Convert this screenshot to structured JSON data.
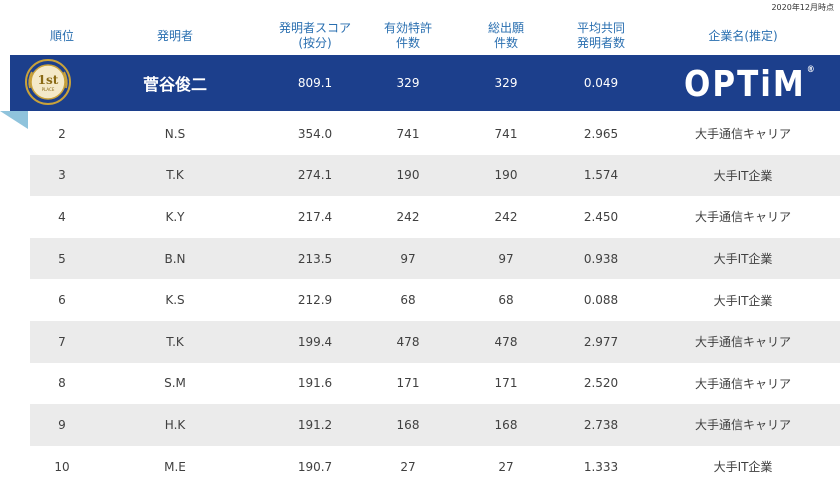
{
  "date_note": "2020年12月時点",
  "headers": {
    "rank": "順位",
    "inventor": "発明者",
    "score_line1": "発明者スコア",
    "score_line2": "(按分)",
    "patents_line1": "有効特許",
    "patents_line2": "件数",
    "apps_line1": "総出願",
    "apps_line2": "件数",
    "coinv_line1": "平均共同",
    "coinv_line2": "発明者数",
    "company": "企業名(推定)"
  },
  "first": {
    "medal_text": "1st",
    "medal_sub": "PLACE",
    "inventor": "菅谷俊二",
    "score": "809.1",
    "patents": "329",
    "apps": "329",
    "coinv": "0.049",
    "company_logo": "OPTiM",
    "company_logo_mark": "®"
  },
  "rows": [
    {
      "rank": "2",
      "inventor": "N.S",
      "score": "354.0",
      "patents": "741",
      "apps": "741",
      "coinv": "2.965",
      "company": "大手通信キャリア"
    },
    {
      "rank": "3",
      "inventor": "T.K",
      "score": "274.1",
      "patents": "190",
      "apps": "190",
      "coinv": "1.574",
      "company": "大手IT企業"
    },
    {
      "rank": "4",
      "inventor": "K.Y",
      "score": "217.4",
      "patents": "242",
      "apps": "242",
      "coinv": "2.450",
      "company": "大手通信キャリア"
    },
    {
      "rank": "5",
      "inventor": "B.N",
      "score": "213.5",
      "patents": "97",
      "apps": "97",
      "coinv": "0.938",
      "company": "大手IT企業"
    },
    {
      "rank": "6",
      "inventor": "K.S",
      "score": "212.9",
      "patents": "68",
      "apps": "68",
      "coinv": "0.088",
      "company": "大手IT企業"
    },
    {
      "rank": "7",
      "inventor": "T.K",
      "score": "199.4",
      "patents": "478",
      "apps": "478",
      "coinv": "2.977",
      "company": "大手通信キャリア"
    },
    {
      "rank": "8",
      "inventor": "S.M",
      "score": "191.6",
      "patents": "171",
      "apps": "171",
      "coinv": "2.520",
      "company": "大手通信キャリア"
    },
    {
      "rank": "9",
      "inventor": "H.K",
      "score": "191.2",
      "patents": "168",
      "apps": "168",
      "coinv": "2.738",
      "company": "大手通信キャリア"
    },
    {
      "rank": "10",
      "inventor": "M.E",
      "score": "190.7",
      "patents": "27",
      "apps": "27",
      "coinv": "1.333",
      "company": "大手IT企業"
    }
  ],
  "colors": {
    "header_text": "#2a6fb0",
    "first_row_bg": "#1c3f8c",
    "alt_row_bg": "#ebebeb",
    "fold_accent": "#8fc3dc",
    "medal_gold": "#c9a23a"
  }
}
